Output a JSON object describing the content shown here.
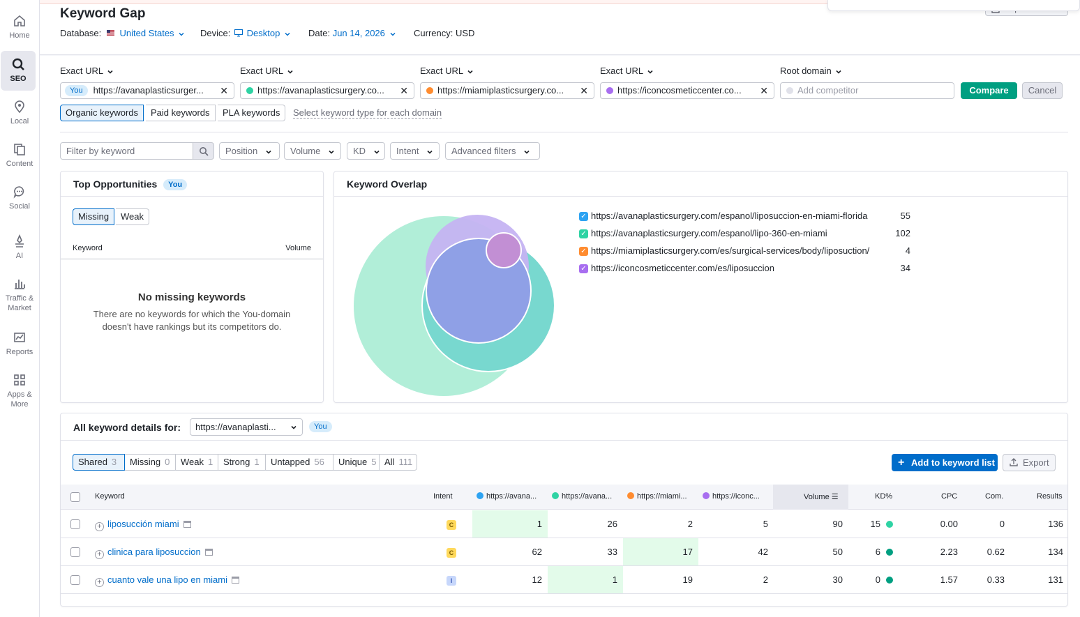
{
  "nav": [
    {
      "label": "Home",
      "icon": "home-icon"
    },
    {
      "label": "SEO",
      "icon": "seo-icon",
      "active": true
    },
    {
      "label": "Local",
      "icon": "location-pin-icon"
    },
    {
      "label": "Content",
      "icon": "content-icon"
    },
    {
      "label": "Social",
      "icon": "chat-bubble-icon"
    },
    {
      "label": "AI",
      "icon": "ai-icon"
    },
    {
      "label": "Traffic &",
      "label2": "Market",
      "icon": "bar-chart-icon"
    },
    {
      "label": "Reports",
      "icon": "reports-icon"
    },
    {
      "label": "Apps &",
      "label2": "More",
      "icon": "apps-grid-icon"
    }
  ],
  "header": {
    "title": "Keyword Gap",
    "database_label": "Database:",
    "database_value": "United States",
    "device_label": "Device:",
    "device_value": "Desktop",
    "date_label": "Date:",
    "date_value": "Jun 14, 2026",
    "currency_label": "Currency:",
    "currency_value": "USD",
    "export_pdf": "Export to PDF"
  },
  "domains": [
    {
      "type": "Exact URL",
      "value": "https://avanaplasticsurgery.com/espanol/liposuccion-en-miami-florida",
      "display": "https://avanaplasticsurger...",
      "you": "You",
      "color": ""
    },
    {
      "type": "Exact URL",
      "value": "https://avanaplasticsurgery.com/espanol/lipo-360-en-miami",
      "display": "https://avanaplasticsurgery.co...",
      "color": "#2fd3a4"
    },
    {
      "type": "Exact URL",
      "value": "https://miamiplasticsurgery.com/es/surgical-services/body/liposuction/",
      "display": "https://miamiplasticsurgery.co...",
      "color": "#ff8c30"
    },
    {
      "type": "Exact URL",
      "value": "https://iconcosmeticcenter.com/es/liposuccion",
      "display": "https://iconcosmeticcenter.co...",
      "color": "#a86ef0"
    },
    {
      "type": "Root domain",
      "placeholder": "Add competitor",
      "color": "#e0e1e9"
    }
  ],
  "buttons": {
    "compare": "Compare",
    "cancel": "Cancel"
  },
  "keyword_types": [
    "Organic keywords",
    "Paid keywords",
    "PLA keywords"
  ],
  "keyword_type_link": "Select keyword type for each domain",
  "filters": {
    "search_placeholder": "Filter by keyword",
    "position": "Position",
    "volume": "Volume",
    "kd": "KD",
    "intent": "Intent",
    "advanced": "Advanced filters"
  },
  "top_opportunities": {
    "title": "Top Opportunities",
    "you": "You",
    "tabs": [
      "Missing",
      "Weak"
    ],
    "col_keyword": "Keyword",
    "col_volume": "Volume",
    "empty_title": "No missing keywords",
    "empty_text_1": "There are no keywords for which the You-domain",
    "empty_text_2": "doesn't have rankings but its competitors do."
  },
  "overlap": {
    "title": "Keyword Overlap",
    "legend": [
      {
        "url": "https://avanaplasticsurgery.com/espanol/liposuccion-en-miami-florida",
        "count": "55",
        "color": "#2ea3f2"
      },
      {
        "url": "https://avanaplasticsurgery.com/espanol/lipo-360-en-miami",
        "count": "102",
        "color": "#2fd3a4"
      },
      {
        "url": "https://miamiplasticsurgery.com/es/surgical-services/body/liposuction/",
        "count": "4",
        "color": "#ff8c30"
      },
      {
        "url": "https://iconcosmeticcenter.com/es/liposuccion",
        "count": "34",
        "color": "#a86ef0"
      }
    ],
    "venn_colors": {
      "lipo360": "#a8ecd4",
      "avana_es": "#8fd6f7",
      "iconco": "#c5b3f2",
      "miami": "#c28fd4"
    }
  },
  "details": {
    "title": "All keyword details for:",
    "select_value": "https://avanaplasti...",
    "you": "You",
    "tabs": [
      {
        "label": "Shared",
        "count": "3",
        "active": true
      },
      {
        "label": "Missing",
        "count": "0"
      },
      {
        "label": "Weak",
        "count": "1"
      },
      {
        "label": "Strong",
        "count": "1"
      },
      {
        "label": "Untapped",
        "count": "56"
      },
      {
        "label": "Unique",
        "count": "5"
      },
      {
        "label": "All",
        "count": "111"
      }
    ],
    "add_to_list": "Add to keyword list",
    "export": "Export",
    "columns": {
      "keyword": "Keyword",
      "intent": "Intent",
      "d1": "https://avana...",
      "d2": "https://avana...",
      "d3": "https://miami...",
      "d4": "https://iconc...",
      "volume": "Volume",
      "kd": "KD%",
      "cpc": "CPC",
      "com": "Com.",
      "results": "Results"
    },
    "rows": [
      {
        "keyword": "liposucción miami",
        "intent": "C",
        "d1": "1",
        "d2": "26",
        "d3": "2",
        "d4": "5",
        "volume": "90",
        "kd": "15",
        "kd_color": "#2fd3a4",
        "cpc": "0.00",
        "com": "0",
        "results": "136",
        "best": "d1"
      },
      {
        "keyword": "clinica para liposuccion",
        "intent": "C",
        "d1": "62",
        "d2": "33",
        "d3": "17",
        "d4": "42",
        "volume": "50",
        "kd": "6",
        "kd_color": "#009f81",
        "cpc": "2.23",
        "com": "0.62",
        "results": "134",
        "best": "d3"
      },
      {
        "keyword": "cuanto vale una lipo en miami",
        "intent": "I",
        "d1": "12",
        "d2": "1",
        "d3": "19",
        "d4": "2",
        "volume": "30",
        "kd": "0",
        "kd_color": "#009f81",
        "cpc": "1.57",
        "com": "0.33",
        "results": "131",
        "best": "d2"
      }
    ]
  }
}
